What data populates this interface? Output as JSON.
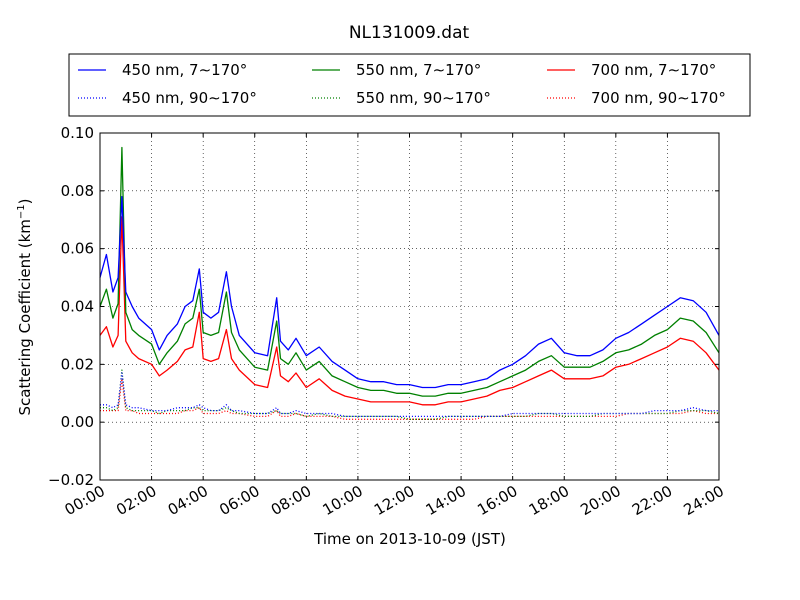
{
  "chart_data": {
    "type": "line",
    "title": "NL131009.dat",
    "xlabel": "Time on 2013-10-09 (JST)",
    "ylabel_main": "Scattering Coefficient (km",
    "ylabel_sup": "−1",
    "ylabel_end": ")",
    "xlim_hours": [
      0,
      24
    ],
    "ylim": [
      -0.02,
      0.1
    ],
    "grid": true,
    "legend_position": "top",
    "x_ticks": [
      {
        "hour": 0,
        "label": "00:00"
      },
      {
        "hour": 2,
        "label": "02:00"
      },
      {
        "hour": 4,
        "label": "04:00"
      },
      {
        "hour": 6,
        "label": "06:00"
      },
      {
        "hour": 8,
        "label": "08:00"
      },
      {
        "hour": 10,
        "label": "10:00"
      },
      {
        "hour": 12,
        "label": "12:00"
      },
      {
        "hour": 14,
        "label": "14:00"
      },
      {
        "hour": 16,
        "label": "16:00"
      },
      {
        "hour": 18,
        "label": "18:00"
      },
      {
        "hour": 20,
        "label": "20:00"
      },
      {
        "hour": 22,
        "label": "22:00"
      },
      {
        "hour": 24,
        "label": "24:00"
      }
    ],
    "y_ticks": [
      {
        "value": -0.02,
        "label": "−0.02"
      },
      {
        "value": 0.0,
        "label": "0.00"
      },
      {
        "value": 0.02,
        "label": "0.02"
      },
      {
        "value": 0.04,
        "label": "0.04"
      },
      {
        "value": 0.06,
        "label": "0.06"
      },
      {
        "value": 0.08,
        "label": "0.08"
      },
      {
        "value": 0.1,
        "label": "0.10"
      }
    ],
    "x_hours": [
      0,
      0.25,
      0.5,
      0.7,
      0.85,
      1.0,
      1.25,
      1.5,
      2.0,
      2.3,
      2.6,
      3.0,
      3.3,
      3.6,
      3.85,
      4.0,
      4.3,
      4.6,
      4.9,
      5.1,
      5.4,
      6.0,
      6.5,
      6.85,
      7.0,
      7.3,
      7.6,
      8.0,
      8.5,
      9.0,
      9.5,
      10.0,
      10.5,
      11.0,
      11.5,
      12.0,
      12.5,
      13.0,
      13.5,
      14.0,
      14.5,
      15.0,
      15.5,
      16.0,
      16.5,
      17.0,
      17.5,
      18.0,
      18.5,
      19.0,
      19.5,
      20.0,
      20.5,
      21.0,
      21.5,
      22.0,
      22.5,
      23.0,
      23.5,
      24.0
    ],
    "series": [
      {
        "name": "450 nm, 7∼170°",
        "color": "#0000ff",
        "style": "solid",
        "values": [
          0.05,
          0.058,
          0.045,
          0.05,
          0.078,
          0.045,
          0.04,
          0.036,
          0.032,
          0.025,
          0.03,
          0.034,
          0.04,
          0.042,
          0.053,
          0.038,
          0.036,
          0.038,
          0.052,
          0.04,
          0.03,
          0.024,
          0.023,
          0.043,
          0.028,
          0.025,
          0.029,
          0.023,
          0.026,
          0.021,
          0.018,
          0.015,
          0.014,
          0.014,
          0.013,
          0.013,
          0.012,
          0.012,
          0.013,
          0.013,
          0.014,
          0.015,
          0.018,
          0.02,
          0.023,
          0.027,
          0.029,
          0.024,
          0.023,
          0.023,
          0.025,
          0.029,
          0.031,
          0.034,
          0.037,
          0.04,
          0.043,
          0.042,
          0.038,
          0.03
        ]
      },
      {
        "name": "550 nm, 7∼170°",
        "color": "#008000",
        "style": "solid",
        "values": [
          0.04,
          0.046,
          0.036,
          0.041,
          0.095,
          0.038,
          0.032,
          0.03,
          0.027,
          0.02,
          0.024,
          0.028,
          0.034,
          0.036,
          0.046,
          0.031,
          0.03,
          0.031,
          0.045,
          0.031,
          0.025,
          0.019,
          0.018,
          0.035,
          0.022,
          0.02,
          0.024,
          0.018,
          0.021,
          0.016,
          0.014,
          0.012,
          0.011,
          0.011,
          0.01,
          0.01,
          0.009,
          0.009,
          0.01,
          0.01,
          0.011,
          0.012,
          0.014,
          0.016,
          0.018,
          0.021,
          0.023,
          0.019,
          0.019,
          0.019,
          0.021,
          0.024,
          0.025,
          0.027,
          0.03,
          0.032,
          0.036,
          0.035,
          0.031,
          0.024
        ]
      },
      {
        "name": "700 nm, 7∼170°",
        "color": "#ff0000",
        "style": "solid",
        "values": [
          0.03,
          0.033,
          0.026,
          0.03,
          0.071,
          0.028,
          0.024,
          0.022,
          0.02,
          0.016,
          0.018,
          0.021,
          0.025,
          0.026,
          0.038,
          0.022,
          0.021,
          0.022,
          0.032,
          0.022,
          0.018,
          0.013,
          0.012,
          0.026,
          0.016,
          0.014,
          0.017,
          0.012,
          0.015,
          0.011,
          0.009,
          0.008,
          0.007,
          0.007,
          0.007,
          0.007,
          0.006,
          0.006,
          0.007,
          0.007,
          0.008,
          0.009,
          0.011,
          0.012,
          0.014,
          0.016,
          0.018,
          0.015,
          0.015,
          0.015,
          0.016,
          0.019,
          0.02,
          0.022,
          0.024,
          0.026,
          0.029,
          0.028,
          0.024,
          0.018
        ]
      },
      {
        "name": "450 nm, 90∼170°",
        "color": "#0000ff",
        "style": "dotted",
        "values": [
          0.006,
          0.006,
          0.005,
          0.006,
          0.017,
          0.006,
          0.005,
          0.005,
          0.004,
          0.004,
          0.004,
          0.005,
          0.005,
          0.005,
          0.006,
          0.005,
          0.004,
          0.004,
          0.006,
          0.004,
          0.004,
          0.003,
          0.003,
          0.005,
          0.003,
          0.003,
          0.004,
          0.003,
          0.003,
          0.003,
          0.002,
          0.002,
          0.002,
          0.002,
          0.002,
          0.002,
          0.002,
          0.002,
          0.002,
          0.002,
          0.002,
          0.002,
          0.002,
          0.003,
          0.003,
          0.003,
          0.003,
          0.003,
          0.003,
          0.003,
          0.003,
          0.003,
          0.003,
          0.003,
          0.004,
          0.004,
          0.004,
          0.005,
          0.004,
          0.004
        ]
      },
      {
        "name": "550 nm, 90∼170°",
        "color": "#008000",
        "style": "dotted",
        "values": [
          0.005,
          0.005,
          0.004,
          0.005,
          0.018,
          0.005,
          0.004,
          0.004,
          0.004,
          0.003,
          0.004,
          0.004,
          0.004,
          0.005,
          0.005,
          0.004,
          0.004,
          0.004,
          0.005,
          0.004,
          0.003,
          0.003,
          0.003,
          0.004,
          0.003,
          0.003,
          0.003,
          0.002,
          0.003,
          0.002,
          0.002,
          0.002,
          0.002,
          0.002,
          0.002,
          0.001,
          0.001,
          0.001,
          0.002,
          0.002,
          0.002,
          0.002,
          0.002,
          0.002,
          0.002,
          0.003,
          0.003,
          0.002,
          0.002,
          0.002,
          0.003,
          0.003,
          0.003,
          0.003,
          0.003,
          0.003,
          0.004,
          0.004,
          0.004,
          0.003
        ]
      },
      {
        "name": "700 nm, 90∼170°",
        "color": "#ff0000",
        "style": "dotted",
        "values": [
          0.004,
          0.004,
          0.004,
          0.004,
          0.015,
          0.004,
          0.004,
          0.003,
          0.003,
          0.003,
          0.003,
          0.003,
          0.004,
          0.004,
          0.005,
          0.003,
          0.003,
          0.003,
          0.004,
          0.003,
          0.003,
          0.002,
          0.002,
          0.004,
          0.002,
          0.002,
          0.003,
          0.002,
          0.002,
          0.002,
          0.001,
          0.001,
          0.001,
          0.001,
          0.001,
          0.001,
          0.001,
          0.001,
          0.001,
          0.001,
          0.001,
          0.002,
          0.002,
          0.002,
          0.002,
          0.002,
          0.002,
          0.002,
          0.002,
          0.002,
          0.002,
          0.002,
          0.003,
          0.003,
          0.003,
          0.003,
          0.003,
          0.004,
          0.003,
          0.003
        ]
      }
    ]
  }
}
